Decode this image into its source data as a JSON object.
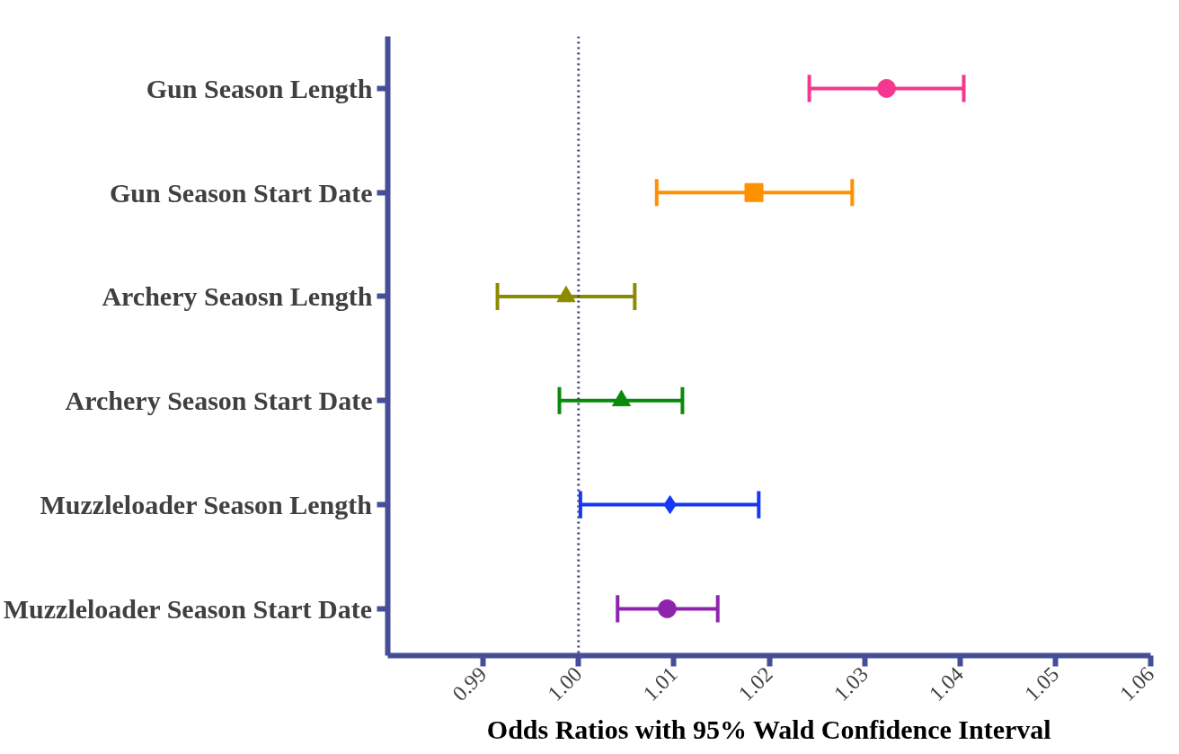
{
  "chart_data": {
    "type": "scatter",
    "orientation": "horizontal",
    "xlabel": "Odds Ratios with 95% Wald Confidence Interval",
    "categories": [
      "Gun Season Length",
      "Gun Season Start Date",
      "Archery Seaosn Length",
      "Archery Season Start Date",
      "Muzzleloader Season Length",
      "Muzzleloader Season Start Date"
    ],
    "xlim": [
      0.98,
      1.06
    ],
    "xticks": [
      {
        "value": 0.99,
        "label": "0.99"
      },
      {
        "value": 1.0,
        "label": "1.00"
      },
      {
        "value": 1.01,
        "label": "1.01"
      },
      {
        "value": 1.02,
        "label": "1.02"
      },
      {
        "value": 1.03,
        "label": "1.03"
      },
      {
        "value": 1.04,
        "label": "1.04"
      },
      {
        "value": 1.05,
        "label": "1.05"
      },
      {
        "value": 1.06,
        "label": "1.06"
      }
    ],
    "grid": false,
    "ref_lines": [
      {
        "axis": "x",
        "value": 1.0,
        "label": null,
        "color": "#3a4488",
        "line_style": "dotted"
      }
    ],
    "series": [
      {
        "color": "#f4388f",
        "marker": "circle",
        "values": [
          1.0323,
          null,
          null,
          null,
          null,
          null
        ],
        "errors": [
          [
            1.0242,
            1.0404
          ],
          null,
          null,
          null,
          null,
          null
        ]
      },
      {
        "color": "#ff9000",
        "marker": "square",
        "values": [
          null,
          1.0184,
          null,
          null,
          null,
          null
        ],
        "errors": [
          null,
          [
            1.0082,
            1.0287
          ],
          null,
          null,
          null,
          null
        ]
      },
      {
        "color": "#8b8b00",
        "marker": "triangle",
        "values": [
          null,
          null,
          0.9987,
          null,
          null,
          null
        ],
        "errors": [
          null,
          null,
          [
            0.9915,
            1.0059
          ],
          null,
          null,
          null
        ]
      },
      {
        "color": "#0a8a0a",
        "marker": "triangle",
        "values": [
          null,
          null,
          null,
          1.0045,
          null,
          null
        ],
        "errors": [
          null,
          null,
          null,
          [
            0.998,
            1.0109
          ],
          null,
          null
        ]
      },
      {
        "color": "#1438f5",
        "marker": "diamond",
        "values": [
          null,
          null,
          null,
          null,
          1.0096,
          null
        ],
        "errors": [
          null,
          null,
          null,
          null,
          [
            1.0002,
            1.0189
          ],
          null
        ]
      },
      {
        "color": "#8e24aa",
        "marker": "circle",
        "values": [
          null,
          null,
          null,
          null,
          null,
          1.0093
        ],
        "errors": [
          null,
          null,
          null,
          null,
          null,
          [
            1.0041,
            1.0146
          ]
        ]
      }
    ]
  }
}
